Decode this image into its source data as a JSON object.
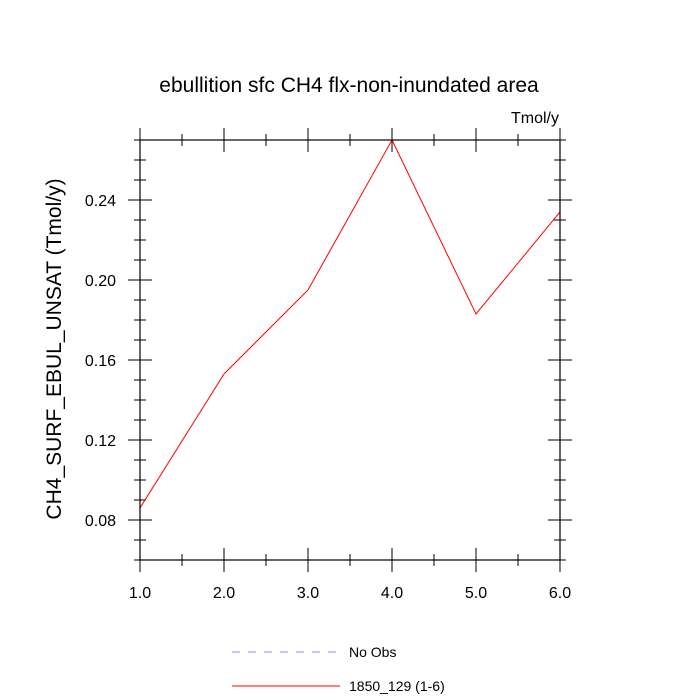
{
  "chart_data": {
    "type": "line",
    "title": "ebullition sfc CH4 flx-non-inundated area",
    "units_label": "Tmol/y",
    "xlabel": "",
    "ylabel": "CH4_SURF_EBUL_UNSAT  (Tmol/y)",
    "xlim": [
      1.0,
      6.0
    ],
    "ylim": [
      0.06,
      0.27
    ],
    "x_ticks": [
      1.0,
      2.0,
      3.0,
      4.0,
      5.0,
      6.0
    ],
    "x_tick_labels": [
      "1.0",
      "2.0",
      "3.0",
      "4.0",
      "5.0",
      "6.0"
    ],
    "y_ticks": [
      0.08,
      0.12,
      0.16,
      0.2,
      0.24
    ],
    "y_tick_labels": [
      "0.08",
      "0.12",
      "0.16",
      "0.20",
      "0.24"
    ],
    "grid": false,
    "series": [
      {
        "name": "1850_129 (1-6)",
        "color": "#ff0000",
        "dash": "solid",
        "x": [
          1.0,
          2.0,
          3.0,
          4.0,
          5.0,
          6.0
        ],
        "values": [
          0.086,
          0.153,
          0.195,
          0.27,
          0.183,
          0.234
        ]
      }
    ],
    "legend": [
      {
        "label": "No Obs",
        "color": "#8888ff",
        "dash": "dashed"
      },
      {
        "label": "1850_129 (1-6)",
        "color": "#ff0000",
        "dash": "solid"
      }
    ],
    "legend_position": "bottom-center"
  }
}
